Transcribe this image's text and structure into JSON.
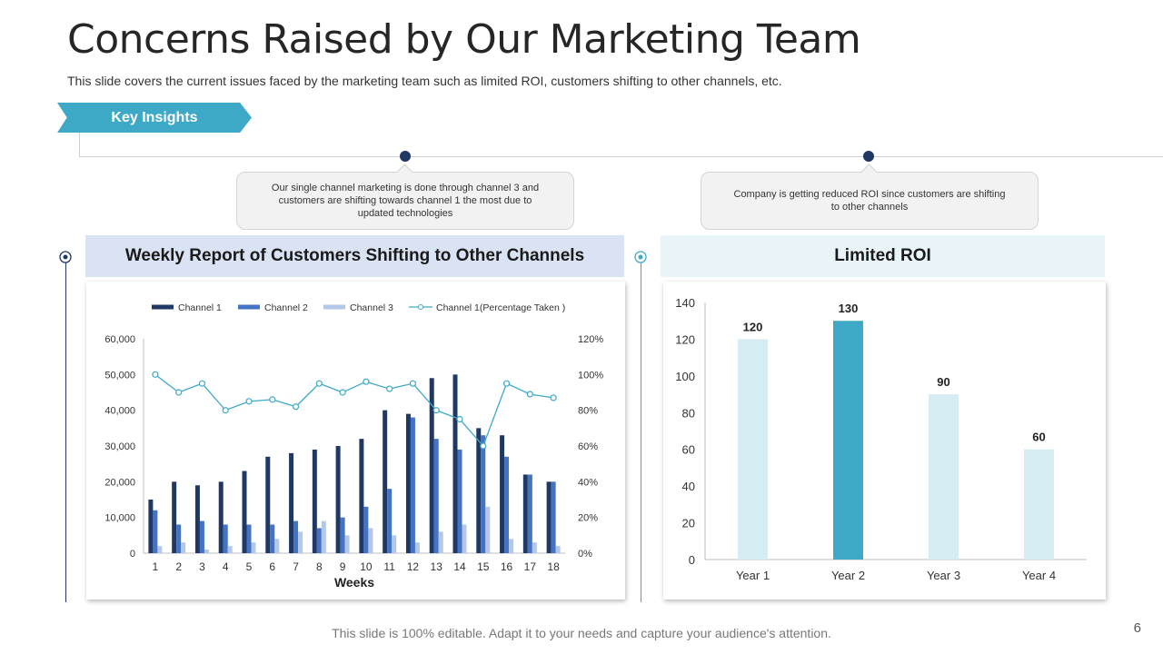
{
  "slide": {
    "title": "Concerns Raised by Our Marketing Team",
    "subtitle": "This slide covers the current issues faced by the marketing team such as limited ROI, customers shifting to other channels, etc.",
    "tag_label": "Key Insights",
    "callout_left": "Our single channel marketing is done through channel 3 and customers are shifting towards channel 1 the most due to updated technologies",
    "callout_right": "Company is getting reduced ROI since customers are shifting to other channels",
    "footer": "This slide is 100% editable. Adapt it to your needs and capture your audience's attention.",
    "page_number": "6"
  },
  "colors": {
    "channel1": "#1f3864",
    "channel2": "#4472c4",
    "channel3": "#b4c7e7",
    "pct_line": "#3ea9c7",
    "roi_bar": "#d6ecf3",
    "roi_highlight": "#3ea9c7",
    "accent": "#3ea9c7",
    "left_head_bg": "#dae3f3",
    "right_head_bg": "#e8f4f8"
  },
  "chart_data": [
    {
      "type": "bar",
      "title": "Weekly Report of Customers Shifting to Other Channels",
      "xlabel": "Weeks",
      "ylabel": "",
      "categories": [
        "1",
        "2",
        "3",
        "4",
        "5",
        "6",
        "7",
        "8",
        "9",
        "10",
        "11",
        "12",
        "13",
        "14",
        "15",
        "16",
        "17",
        "18"
      ],
      "series": [
        {
          "name": "Channel 1",
          "values": [
            15000,
            20000,
            19000,
            20000,
            23000,
            27000,
            28000,
            29000,
            30000,
            32000,
            40000,
            39000,
            49000,
            50000,
            35000,
            33000,
            22000,
            20000
          ]
        },
        {
          "name": "Channel 2",
          "values": [
            12000,
            8000,
            9000,
            8000,
            8000,
            8000,
            9000,
            7000,
            10000,
            13000,
            18000,
            38000,
            32000,
            29000,
            33000,
            27000,
            22000,
            20000
          ]
        },
        {
          "name": "Channel 3",
          "values": [
            2000,
            3000,
            1000,
            2000,
            3000,
            4000,
            6000,
            9000,
            5000,
            7000,
            5000,
            3000,
            6000,
            8000,
            13000,
            4000,
            3000,
            2000
          ]
        },
        {
          "name": "Channel 1(Percentage Taken )",
          "type": "line",
          "axis": "right",
          "values": [
            100,
            90,
            95,
            80,
            85,
            86,
            82,
            95,
            90,
            96,
            92,
            95,
            80,
            75,
            60,
            95,
            89,
            87
          ]
        }
      ],
      "ylim": [
        0,
        60000
      ],
      "yticks": [
        "0",
        "10,000",
        "20,000",
        "30,000",
        "40,000",
        "50,000",
        "60,000"
      ],
      "y2lim": [
        0,
        120
      ],
      "y2ticks": [
        "0%",
        "20%",
        "40%",
        "60%",
        "80%",
        "100%",
        "120%"
      ],
      "legend": "top",
      "grid": false
    },
    {
      "type": "bar",
      "title": "Limited  ROI",
      "categories": [
        "Year 1",
        "Year 2",
        "Year 3",
        "Year 4"
      ],
      "values": [
        120,
        130,
        90,
        60
      ],
      "labels": [
        "120",
        "130",
        "90",
        "60"
      ],
      "highlight_index": 1,
      "ylim": [
        0,
        140
      ],
      "yticks": [
        "0",
        "20",
        "40",
        "60",
        "80",
        "100",
        "120",
        "140"
      ],
      "grid": false
    }
  ]
}
